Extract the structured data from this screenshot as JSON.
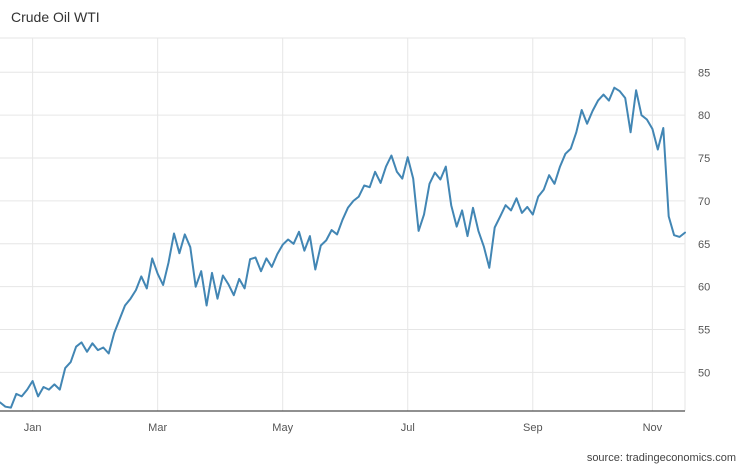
{
  "title": "Crude Oil WTI",
  "source": "source: tradingeconomics.com",
  "chart_data": {
    "type": "line",
    "title": "Crude Oil WTI",
    "xlabel": "",
    "ylabel": "",
    "x_tick_labels": [
      "Jan",
      "Mar",
      "May",
      "Jul",
      "Sep",
      "Nov"
    ],
    "x_tick_index": [
      6,
      29,
      52,
      75,
      98,
      120
    ],
    "y_ticks": [
      50,
      55,
      60,
      65,
      70,
      75,
      80,
      85
    ],
    "ylim": [
      45.5,
      89
    ],
    "grid": true,
    "y_axis_position": "right",
    "color": "#4286b4",
    "series": [
      {
        "values": [
          46.5,
          46.0,
          45.9,
          47.5,
          47.2,
          48.0,
          49.0,
          47.2,
          48.3,
          48.0,
          48.6,
          48.0,
          50.5,
          51.2,
          53.0,
          53.5,
          52.4,
          53.4,
          52.6,
          52.9,
          52.2,
          54.6,
          56.2,
          57.8,
          58.6,
          59.6,
          61.2,
          59.8,
          63.3,
          61.5,
          60.2,
          62.8,
          66.2,
          63.9,
          66.1,
          64.6,
          60.0,
          61.8,
          57.8,
          61.6,
          58.6,
          61.3,
          60.3,
          59.0,
          60.9,
          59.8,
          63.2,
          63.4,
          61.8,
          63.3,
          62.3,
          63.8,
          64.9,
          65.5,
          65.0,
          66.4,
          64.2,
          65.9,
          62.0,
          64.8,
          65.4,
          66.6,
          66.1,
          67.8,
          69.2,
          70.0,
          70.5,
          71.8,
          71.6,
          73.4,
          72.1,
          74.0,
          75.3,
          73.4,
          72.6,
          75.1,
          72.6,
          66.5,
          68.4,
          72.0,
          73.3,
          72.5,
          74.0,
          69.5,
          67.0,
          68.9,
          65.9,
          69.2,
          66.5,
          64.7,
          62.2,
          66.9,
          68.2,
          69.5,
          68.9,
          70.3,
          68.6,
          69.3,
          68.4,
          70.5,
          71.3,
          73.0,
          72.0,
          74.0,
          75.5,
          76.1,
          78.0,
          80.6,
          79.0,
          80.5,
          81.7,
          82.4,
          81.7,
          83.2,
          82.8,
          82.0,
          78.0,
          82.9,
          80.0,
          79.5,
          78.4,
          76.0,
          78.5,
          68.2,
          66.0,
          65.8,
          66.3
        ],
        "name": ""
      }
    ]
  }
}
